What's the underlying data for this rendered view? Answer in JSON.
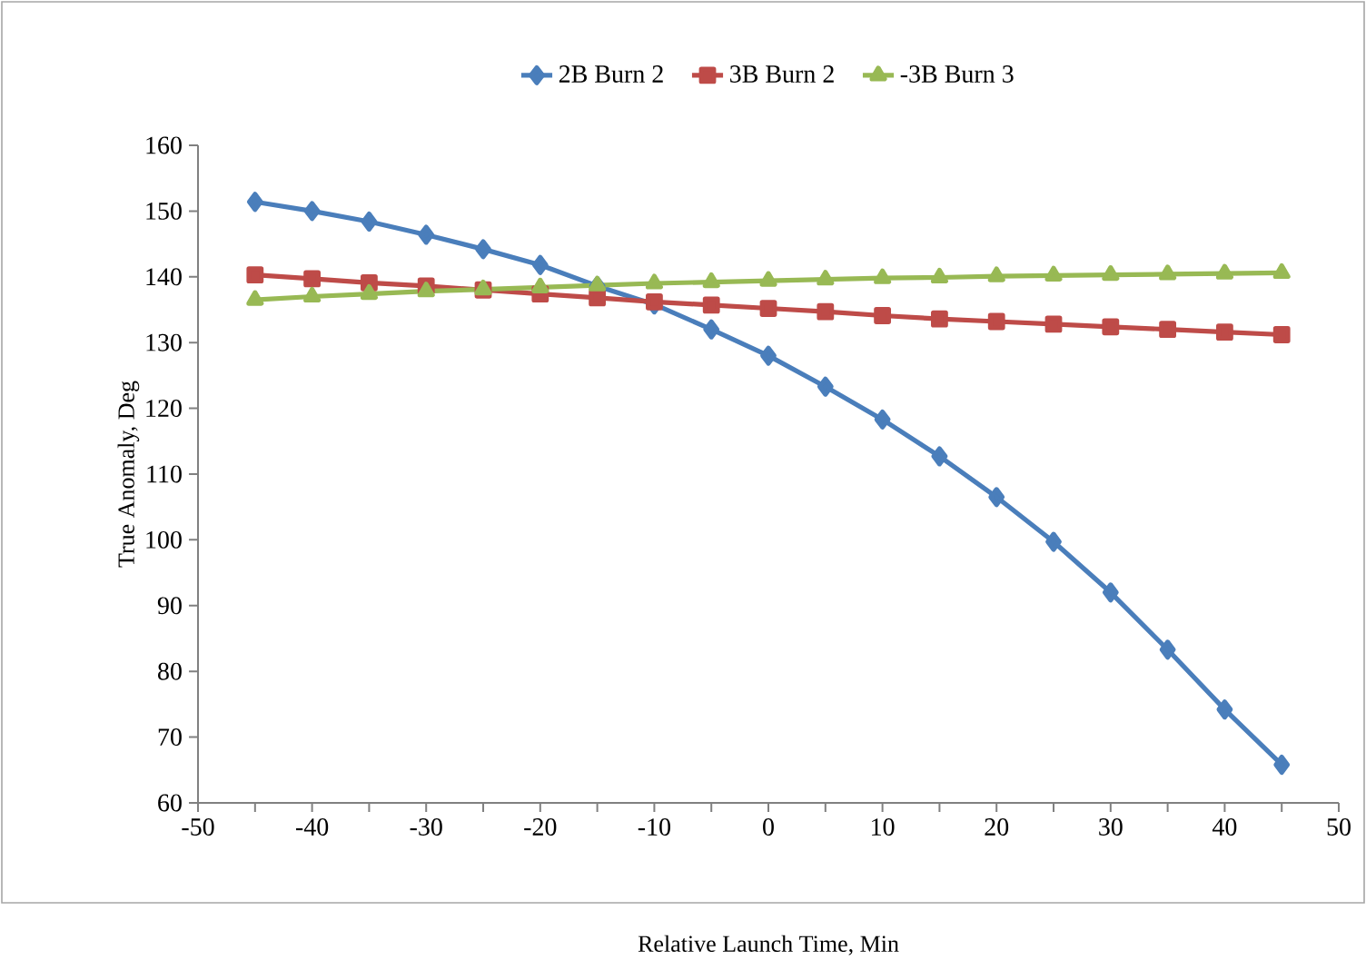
{
  "chart_data": {
    "type": "line",
    "xlabel": "Relative Launch Time, Min",
    "ylabel": "True Anomaly, Deg",
    "x": [
      -45,
      -40,
      -35,
      -30,
      -25,
      -20,
      -15,
      -10,
      -5,
      0,
      5,
      10,
      15,
      20,
      25,
      30,
      35,
      40,
      45
    ],
    "series": [
      {
        "name": "2B Burn 2",
        "color": "#4a7ebb",
        "marker": "diamond",
        "values": [
          151.4,
          150,
          148.4,
          146.4,
          144.2,
          141.8,
          138.6,
          135.8,
          132,
          128,
          123.3,
          118.3,
          112.7,
          106.5,
          99.7,
          92,
          83.3,
          74.2,
          65.8
        ]
      },
      {
        "name": "3B Burn 2",
        "color": "#be4b48",
        "marker": "square",
        "values": [
          140.3,
          139.7,
          139.1,
          138.6,
          138,
          137.4,
          136.8,
          136.2,
          135.7,
          135.2,
          134.7,
          134.1,
          133.6,
          133.2,
          132.8,
          132.4,
          132,
          131.6,
          131.2
        ]
      },
      {
        "name": "-3B Burn 3",
        "color": "#98b954",
        "marker": "triangle",
        "values": [
          136.5,
          137,
          137.4,
          137.8,
          138.1,
          138.4,
          138.7,
          139,
          139.2,
          139.4,
          139.6,
          139.8,
          139.9,
          140.1,
          140.2,
          140.3,
          140.4,
          140.5,
          140.6
        ]
      }
    ],
    "xlim": [
      -50,
      50
    ],
    "xticks": [
      -50,
      {
        "value": -45,
        "label": null
      },
      -40,
      {
        "value": -35,
        "label": null
      },
      -30,
      {
        "value": -25,
        "label": null
      },
      -20,
      {
        "value": -15,
        "label": null
      },
      -10,
      {
        "value": -5,
        "label": null
      },
      0,
      {
        "value": 5,
        "label": null
      },
      10,
      {
        "value": 15,
        "label": null
      },
      20,
      {
        "value": 25,
        "label": null
      },
      30,
      {
        "value": 35,
        "label": null
      },
      40,
      {
        "value": 45,
        "label": null
      },
      50
    ],
    "ylim": [
      60,
      160
    ],
    "yticks": [
      60,
      70,
      80,
      90,
      100,
      110,
      120,
      130,
      140,
      150,
      160
    ],
    "legend": "top",
    "grid": false,
    "line_style": "solid"
  }
}
